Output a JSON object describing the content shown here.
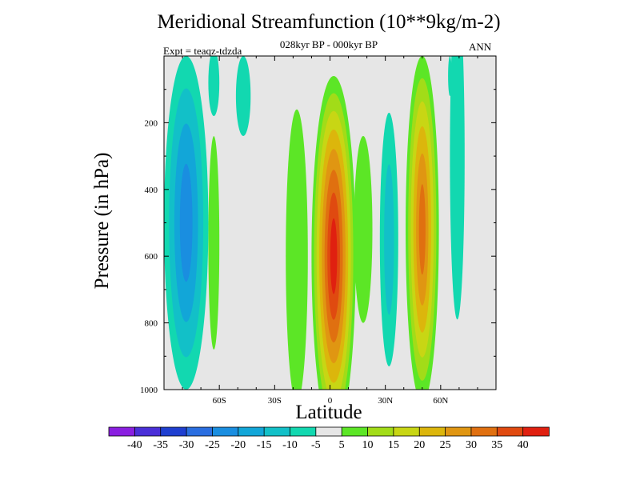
{
  "chart_data": {
    "type": "heatmap",
    "title": "Meridional Streamfunction (10**9kg/m-2)",
    "subtitle": "028kyr BP - 000kyr BP",
    "experiment": "Expt = teaqz-tdzda",
    "season": "ANN",
    "xlabel": "Latitude",
    "ylabel": "Pressure (in hPa)",
    "xlim": [
      -90,
      90
    ],
    "ylim": [
      1000,
      0
    ],
    "y_reversed": true,
    "x_ticks": [
      {
        "value": -60,
        "label": "60S"
      },
      {
        "value": -30,
        "label": "30S"
      },
      {
        "value": 0,
        "label": "0"
      },
      {
        "value": 30,
        "label": "30N"
      },
      {
        "value": 60,
        "label": "60N"
      }
    ],
    "y_ticks": [
      {
        "value": 200,
        "label": "200"
      },
      {
        "value": 400,
        "label": "400"
      },
      {
        "value": 600,
        "label": "600"
      },
      {
        "value": 800,
        "label": "800"
      },
      {
        "value": 1000,
        "label": "1000"
      }
    ],
    "contour_levels": [
      "-40",
      "-35",
      "-30",
      "-25",
      "-20",
      "-15",
      "-10",
      "-5",
      "5",
      "10",
      "15",
      "20",
      "25",
      "30",
      "35",
      "40"
    ],
    "colorbar_colors": [
      "#8a1fe0",
      "#4a2fd8",
      "#1f3fd0",
      "#2a6ee0",
      "#1a8ee0",
      "#12a6d8",
      "#12c0c8",
      "#12d8b0",
      "#e6e6e6",
      "#5ce626",
      "#a2dc18",
      "#c8d614",
      "#dcb60c",
      "#e09612",
      "#e07010",
      "#e04a10",
      "#e02010"
    ],
    "background_color": "#e6e6e6",
    "features": [
      {
        "name": "equatorial-cell",
        "kind": "positive",
        "center_lat": 2,
        "center_p": 600,
        "peak": 40,
        "lat_extent": [
          -10,
          12
        ],
        "p_extent": [
          60,
          985
        ]
      },
      {
        "name": "equatorial-cell-outer-north",
        "kind": "positive",
        "center_lat": 18,
        "center_p": 520,
        "peak": 5,
        "lat_extent": [
          13,
          22
        ],
        "p_extent": [
          240,
          770
        ]
      },
      {
        "name": "equatorial-cell-outer-south",
        "kind": "positive",
        "center_lat": -18,
        "center_p": 600,
        "peak": 5,
        "lat_extent": [
          -21,
          -12
        ],
        "p_extent": [
          160,
          940
        ]
      },
      {
        "name": "northern-midlat-cell",
        "kind": "positive",
        "center_lat": 50,
        "center_p": 520,
        "peak": 30,
        "lat_extent": [
          42,
          59
        ],
        "p_extent": [
          0,
          975
        ]
      },
      {
        "name": "southern-midlat-band",
        "kind": "positive",
        "center_lat": -63,
        "center_p": 560,
        "peak": 5,
        "lat_extent": [
          -65,
          -60
        ],
        "p_extent": [
          260,
          880
        ]
      },
      {
        "name": "southern-polar-cell",
        "kind": "negative",
        "center_lat": -78,
        "center_p": 500,
        "peak": -20,
        "lat_extent": [
          -90,
          -68
        ],
        "p_extent": [
          0,
          940
        ]
      },
      {
        "name": "southern-upper-lobe",
        "kind": "negative",
        "center_lat": -63,
        "center_p": 80,
        "peak": -5,
        "lat_extent": [
          -64,
          -60
        ],
        "p_extent": [
          0,
          180
        ]
      },
      {
        "name": "southern-upper-strip",
        "kind": "negative",
        "center_lat": -47,
        "center_p": 120,
        "peak": -5,
        "lat_extent": [
          -50,
          -43
        ],
        "p_extent": [
          0,
          190
        ]
      },
      {
        "name": "tropical-north-negative",
        "kind": "negative",
        "center_lat": 32,
        "center_p": 550,
        "peak": -10,
        "lat_extent": [
          27,
          37
        ],
        "p_extent": [
          170,
          920
        ]
      },
      {
        "name": "northern-upper-strip",
        "kind": "negative",
        "center_lat": 69,
        "center_p": 300,
        "peak": -5,
        "lat_extent": [
          66,
          73
        ],
        "p_extent": [
          0,
          790
        ]
      },
      {
        "name": "north-polar-upper",
        "kind": "negative",
        "center_lat": 65,
        "center_p": 60,
        "peak": -5,
        "lat_extent": [
          64,
          66
        ],
        "p_extent": [
          0,
          120
        ]
      }
    ]
  }
}
